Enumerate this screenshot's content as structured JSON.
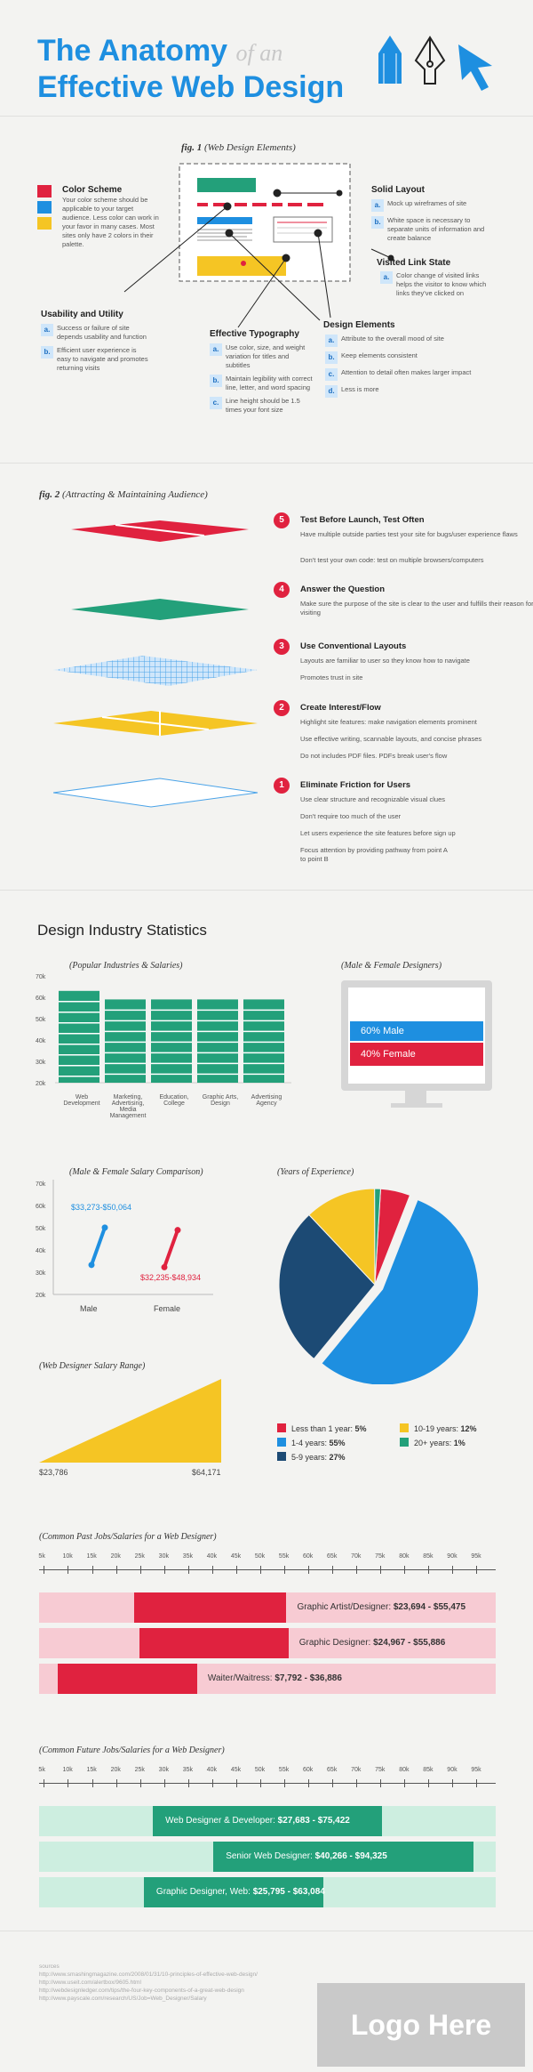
{
  "header": {
    "line1": "The Anatomy",
    "ofan": "of an",
    "line2": "Effective Web Design"
  },
  "fig1": {
    "label": "fig. 1",
    "caption": "(Web Design Elements)",
    "color_scheme": {
      "title": "Color Scheme",
      "text": "Your color scheme should be applicable to your target audience. Less color can work in your favor in many cases. Most sites only have 2 colors in their palette."
    },
    "solid_layout": {
      "title": "Solid Layout",
      "a": "Mock up wireframes of site",
      "b": "White space is necessary to separate units of information and create balance"
    },
    "visited": {
      "title": "Visited Link State",
      "a": "Color change of visited links helps the visitor to know which links they've clicked on"
    },
    "usability": {
      "title": "Usability and Utility",
      "a": "Success or failure of site depends usability and function",
      "b": "Efficient user experience is easy to navigate and promotes returning visits"
    },
    "typography": {
      "title": "Effective Typography",
      "a": "Use color, size, and weight variation for titles and subtitles",
      "b": "Maintain legibility with correct line, letter, and word spacing",
      "c": "Line height should be 1.5 times your font size"
    },
    "design_elements": {
      "title": "Design Elements",
      "a": "Attribute to the overall mood of site",
      "b": "Keep elements consistent",
      "c": "Attention to detail often makes larger impact",
      "d": "Less is more"
    }
  },
  "fig2": {
    "label": "fig. 2",
    "caption": "(Attracting & Maintaining Audience)",
    "steps": [
      {
        "num": "5",
        "title": "Test Before Launch, Test Often",
        "lines": [
          "Have multiple outside parties test your site for bugs/user experience flaws",
          "Don't test your own code: test on multiple browsers/computers"
        ]
      },
      {
        "num": "4",
        "title": "Answer the Question",
        "lines": [
          "Make sure the purpose of the site is clear to the user and fulfills their reason for visiting"
        ]
      },
      {
        "num": "3",
        "title": "Use Conventional Layouts",
        "lines": [
          "Layouts are familiar to user so they know how to navigate",
          "Promotes trust in site"
        ]
      },
      {
        "num": "2",
        "title": "Create Interest/Flow",
        "lines": [
          "Highlight site features: make navigation elements prominent",
          "Use effective writing, scannable layouts, and concise phrases",
          "Do not includes PDF files. PDFs break user's flow"
        ]
      },
      {
        "num": "1",
        "title": "Eliminate Friction for Users",
        "lines": [
          "Use clear structure and recognizable visual clues",
          "Don't require too much of the user",
          "Let users experience the site features before sign up",
          "Focus attention by providing pathway from point A to point B"
        ]
      }
    ]
  },
  "stats": {
    "title": "Design Industry Statistics",
    "industries": {
      "caption": "(Popular Industries & Salaries)",
      "yticks": [
        "70k",
        "60k",
        "50k",
        "40k",
        "30k",
        "20k"
      ],
      "categories": [
        "Web Development",
        "Marketing, Advertising, Media Management",
        "Education, College",
        "Graphic Arts, Design",
        "Advertising Agency"
      ]
    },
    "gender": {
      "caption": "(Male & Female Designers)",
      "male": "60% Male",
      "female": "40% Female"
    },
    "salary_cmp": {
      "caption": "(Male & Female Salary Comparison)",
      "yticks": [
        "70k",
        "60k",
        "50k",
        "40k",
        "30k",
        "20k"
      ],
      "male_range": "$33,273-$50,064",
      "female_range": "$32,235-$48,934",
      "male": "Male",
      "female": "Female"
    },
    "experience": {
      "caption": "(Years of Experience)",
      "legend": [
        {
          "label": "Less than 1 year: ",
          "value": "5%",
          "color": "#e0223f"
        },
        {
          "label": "10-19 years: ",
          "value": "12%",
          "color": "#f5c524"
        },
        {
          "label": "1-4 years: ",
          "value": "55%",
          "color": "#1e8fe0"
        },
        {
          "label": "20+ years: ",
          "value": "1%",
          "color": "#23a07a"
        },
        {
          "label": "5-9 years: ",
          "value": "27%",
          "color": "#1c4a74"
        }
      ]
    },
    "salary_range": {
      "caption": "(Web Designer Salary Range)",
      "low": "$23,786",
      "high": "$64,171"
    },
    "axis_ticks": [
      "5k",
      "10k",
      "15k",
      "20k",
      "25k",
      "30k",
      "35k",
      "40k",
      "45k",
      "50k",
      "55k",
      "60k",
      "65k",
      "70k",
      "75k",
      "80k",
      "85k",
      "90k",
      "95k"
    ],
    "past": {
      "caption": "(Common Past Jobs/Salaries for a Web Designer)",
      "rows": [
        {
          "title": "Graphic Artist/Designer: ",
          "range": "$23,694 - $55,475"
        },
        {
          "title": "Graphic Designer: ",
          "range": "$24,967 - $55,886"
        },
        {
          "title": "Waiter/Waitress: ",
          "range": "$7,792 - $36,886"
        }
      ]
    },
    "future": {
      "caption": "(Common Future Jobs/Salaries for a Web Designer)",
      "rows": [
        {
          "title": "Web Designer & Developer: ",
          "range": "$27,683 - $75,422"
        },
        {
          "title": "Senior Web Designer: ",
          "range": "$40,266 - $94,325"
        },
        {
          "title": "Graphic Designer, Web: ",
          "range": "$25,795 - $63,084"
        }
      ]
    }
  },
  "footer": {
    "sources_label": "sources",
    "sources": [
      "http://www.smashingmagazine.com/2008/01/31/10-principles-of-effective-web-design/",
      "http://www.useit.com/alertbox/9605.html",
      "http://webdesignledger.com/tips/the-four-key-components-of-a-great-web-design",
      "http://www.payscale.com/research/US/Job=Web_Designer/Salary"
    ],
    "logo": "Logo Here"
  },
  "chart_data": [
    {
      "type": "bar",
      "title": "(Popular Industries & Salaries)",
      "categories": [
        "Web Development",
        "Marketing, Advertising, Media Management",
        "Education, College",
        "Graphic Arts, Design",
        "Advertising Agency"
      ],
      "values": [
        63,
        59,
        59,
        59,
        59
      ],
      "ylim": [
        20,
        70
      ]
    },
    {
      "type": "pie",
      "title": "(Years of Experience)",
      "categories": [
        "Less than 1 year",
        "1-4 years",
        "5-9 years",
        "10-19 years",
        "20+ years"
      ],
      "values": [
        5,
        55,
        27,
        12,
        1
      ]
    }
  ]
}
